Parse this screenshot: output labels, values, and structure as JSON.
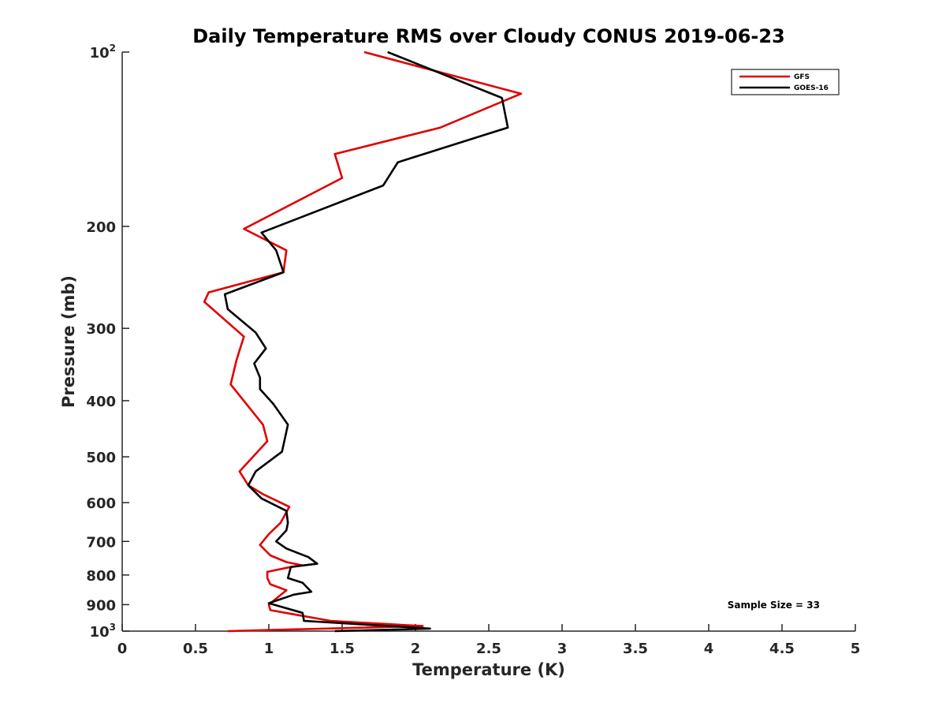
{
  "chart_data": {
    "type": "line",
    "title": "Daily Temperature RMS over Cloudy CONUS 2019-06-23",
    "xlabel": "Temperature (K)",
    "ylabel": "Pressure (mb)",
    "xlim": [
      0,
      5
    ],
    "ylim": [
      100,
      1000
    ],
    "y_scale": "log",
    "y_reversed": true,
    "x_ticks": [
      0,
      0.5,
      1,
      1.5,
      2,
      2.5,
      3,
      3.5,
      4,
      4.5,
      5
    ],
    "x_tick_labels": [
      "0",
      "0.5",
      "1",
      "1.5",
      "2",
      "2.5",
      "3",
      "3.5",
      "4",
      "4.5",
      "5"
    ],
    "y_ticks": [
      100,
      200,
      300,
      400,
      500,
      600,
      700,
      800,
      900,
      1000
    ],
    "y_tick_labels": [
      {
        "base": "10",
        "sup": "2"
      },
      {
        "base": "200",
        "sup": ""
      },
      {
        "base": "300",
        "sup": ""
      },
      {
        "base": "400",
        "sup": ""
      },
      {
        "base": "500",
        "sup": ""
      },
      {
        "base": "600",
        "sup": ""
      },
      {
        "base": "700",
        "sup": ""
      },
      {
        "base": "800",
        "sup": ""
      },
      {
        "base": "900",
        "sup": ""
      },
      {
        "base": "10",
        "sup": "3"
      }
    ],
    "grid": false,
    "legend_position": "top-right",
    "annotation": "Sample Size = 33",
    "series": [
      {
        "name": "GFS",
        "color": "#e00000",
        "x": [
          1.65,
          2.72,
          2.17,
          1.45,
          1.5,
          0.83,
          1.12,
          1.1,
          0.59,
          0.56,
          0.83,
          0.78,
          0.74,
          0.96,
          0.99,
          0.8,
          0.86,
          0.96,
          1.14,
          1.08,
          1.0,
          0.94,
          1.01,
          1.12,
          1.23,
          1.15,
          0.99,
          0.99,
          1.01,
          1.12,
          1.0,
          1.01,
          1.42,
          2.05,
          0.72
        ],
        "y": [
          100,
          118,
          135,
          150,
          165,
          202,
          220,
          240,
          260,
          270,
          310,
          340,
          375,
          440,
          470,
          530,
          560,
          580,
          610,
          650,
          680,
          710,
          740,
          760,
          770,
          775,
          790,
          810,
          830,
          850,
          900,
          920,
          960,
          980,
          1000
        ]
      },
      {
        "name": "GOES-16",
        "color": "#000000",
        "x": [
          1.81,
          2.59,
          2.63,
          1.88,
          1.78,
          0.95,
          1.05,
          1.1,
          0.7,
          0.72,
          0.91,
          0.98,
          0.9,
          0.94,
          0.94,
          1.03,
          1.13,
          1.09,
          0.91,
          0.86,
          0.95,
          1.12,
          1.13,
          1.12,
          1.05,
          1.12,
          1.27,
          1.33,
          1.15,
          1.13,
          1.23,
          1.25,
          1.29,
          1.17,
          1.0,
          1.23,
          1.24,
          2.1,
          1.45
        ],
        "y": [
          100,
          120,
          135,
          155,
          170,
          205,
          220,
          240,
          262,
          278,
          305,
          325,
          345,
          365,
          382,
          405,
          440,
          490,
          530,
          560,
          590,
          620,
          650,
          670,
          700,
          720,
          745,
          765,
          775,
          810,
          825,
          835,
          855,
          865,
          895,
          930,
          960,
          990,
          1000
        ]
      }
    ]
  }
}
